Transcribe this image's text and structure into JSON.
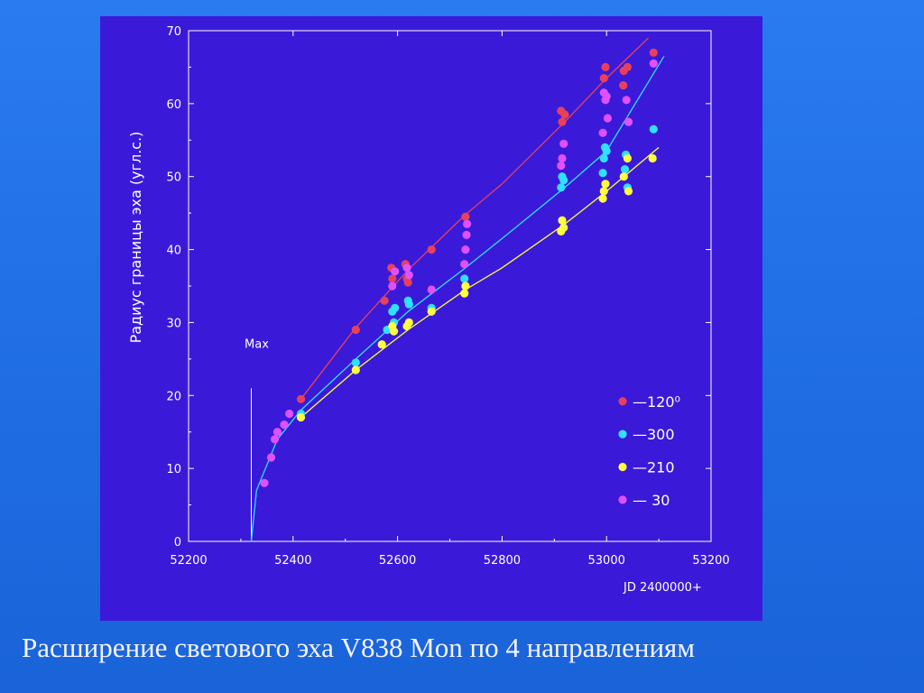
{
  "caption": "Расширение светового эха V838 Mon по 4 направлениям",
  "colors": {
    "plot_background": "#3a1ad8",
    "slide_background": "#2070e8",
    "axis": "#ffffff",
    "series_120": "#e8405a",
    "series_300": "#30e0ff",
    "series_210": "#ffff40",
    "series_30": "#e050ff"
  },
  "chart_data": {
    "type": "scatter",
    "ylabel": "Радиус границы эха (угл.с.)",
    "xlabel": "JD 2400000+",
    "xlim": [
      52200,
      53200
    ],
    "ylim": [
      0,
      70
    ],
    "x_ticks": [
      52200,
      52400,
      52600,
      52800,
      53000,
      53200
    ],
    "y_ticks": [
      0,
      10,
      20,
      30,
      40,
      50,
      60,
      70
    ],
    "legend_position": "bottom-right",
    "annotation": {
      "text": "Max",
      "x": 52320
    },
    "series": [
      {
        "name": "—120⁰",
        "color": "#e8405a",
        "points": [
          [
            52415,
            19.5
          ],
          [
            52520,
            29
          ],
          [
            52575,
            33
          ],
          [
            52588,
            37.5
          ],
          [
            52590,
            36
          ],
          [
            52615,
            38
          ],
          [
            52618,
            36
          ],
          [
            52620,
            35.5
          ],
          [
            52665,
            40
          ],
          [
            52730,
            44.5
          ],
          [
            52913,
            59
          ],
          [
            52915,
            57.5
          ],
          [
            52920,
            58.5
          ],
          [
            52995,
            63.5
          ],
          [
            52998,
            65
          ],
          [
            53032,
            62.5
          ],
          [
            53033,
            64.5
          ],
          [
            53040,
            65
          ],
          [
            53090,
            67
          ]
        ],
        "fit": [
          [
            52415,
            19.5
          ],
          [
            52520,
            29.3
          ],
          [
            52620,
            37.2
          ],
          [
            52730,
            44.8
          ],
          [
            52800,
            49
          ],
          [
            52920,
            57.5
          ],
          [
            53000,
            63.5
          ],
          [
            53080,
            69
          ]
        ]
      },
      {
        "name": "—300",
        "color": "#30e0ff",
        "points": [
          [
            52415,
            17.5
          ],
          [
            52520,
            24.5
          ],
          [
            52580,
            29
          ],
          [
            52590,
            31.5
          ],
          [
            52593,
            30
          ],
          [
            52595,
            32
          ],
          [
            52620,
            33
          ],
          [
            52622,
            32.5
          ],
          [
            52665,
            32
          ],
          [
            52728,
            36
          ],
          [
            52730,
            35
          ],
          [
            52913,
            48.5
          ],
          [
            52915,
            50
          ],
          [
            52918,
            49.5
          ],
          [
            52993,
            50.5
          ],
          [
            52995,
            52.5
          ],
          [
            52997,
            54
          ],
          [
            53000,
            53.5
          ],
          [
            53035,
            51
          ],
          [
            53037,
            53
          ],
          [
            53040,
            48.5
          ],
          [
            53090,
            56.5
          ]
        ],
        "fit": [
          [
            52320,
            0
          ],
          [
            52330,
            7
          ],
          [
            52370,
            14
          ],
          [
            52415,
            18
          ],
          [
            52520,
            25
          ],
          [
            52620,
            31.5
          ],
          [
            52730,
            37.5
          ],
          [
            52800,
            41.5
          ],
          [
            52920,
            48.5
          ],
          [
            53000,
            53.5
          ],
          [
            53110,
            66.5
          ]
        ]
      },
      {
        "name": "—210",
        "color": "#ffff40",
        "points": [
          [
            52415,
            17
          ],
          [
            52520,
            23.5
          ],
          [
            52570,
            27
          ],
          [
            52590,
            29.5
          ],
          [
            52593,
            28.8
          ],
          [
            52618,
            29.5
          ],
          [
            52622,
            30
          ],
          [
            52665,
            31.5
          ],
          [
            52728,
            34
          ],
          [
            52730,
            35
          ],
          [
            52913,
            42.5
          ],
          [
            52915,
            44
          ],
          [
            52918,
            43
          ],
          [
            52993,
            47
          ],
          [
            52995,
            48
          ],
          [
            52998,
            49
          ],
          [
            53033,
            50
          ],
          [
            53040,
            52.5
          ],
          [
            53042,
            48
          ],
          [
            53088,
            52.5
          ]
        ],
        "fit": [
          [
            52415,
            17
          ],
          [
            52520,
            23.5
          ],
          [
            52620,
            29
          ],
          [
            52730,
            34.5
          ],
          [
            52800,
            37.5
          ],
          [
            52920,
            43.5
          ],
          [
            53000,
            48
          ],
          [
            53100,
            54
          ]
        ]
      },
      {
        "name": "— 30",
        "color": "#e050ff",
        "points": [
          [
            52345,
            8
          ],
          [
            52358,
            11.5
          ],
          [
            52365,
            14
          ],
          [
            52370,
            15
          ],
          [
            52383,
            16
          ],
          [
            52393,
            17.5
          ],
          [
            52590,
            35
          ],
          [
            52595,
            37
          ],
          [
            52618,
            37.5
          ],
          [
            52622,
            36.5
          ],
          [
            52665,
            34.5
          ],
          [
            52728,
            38
          ],
          [
            52730,
            40
          ],
          [
            52732,
            42
          ],
          [
            52733,
            43.5
          ],
          [
            52913,
            51.5
          ],
          [
            52915,
            52.5
          ],
          [
            52918,
            54.5
          ],
          [
            52993,
            56
          ],
          [
            52995,
            61.5
          ],
          [
            52998,
            60.5
          ],
          [
            53000,
            61
          ],
          [
            53002,
            58
          ],
          [
            53038,
            60.5
          ],
          [
            53042,
            57.5
          ],
          [
            53090,
            65.5
          ]
        ]
      }
    ]
  }
}
